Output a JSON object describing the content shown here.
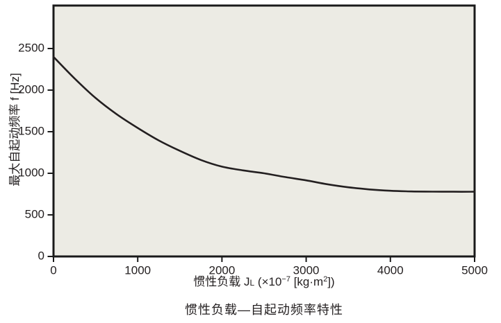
{
  "page": {
    "background_color": "#ffffff",
    "ink_color": "#231f20",
    "plot_background_color": "#ecebe4"
  },
  "chart_data": {
    "type": "line",
    "title": "惯性负载—自起动频率特性",
    "ylabel": "最大自起动频率 f [Hz]",
    "xlabel_plain": "惯性负载 JL (×10−7 [kg·m2])",
    "xlabel_segments": [
      {
        "t": "惯性负载 J",
        "s": "normal"
      },
      {
        "t": "L",
        "s": "small"
      },
      {
        "t": " (×10",
        "s": "normal"
      },
      {
        "t": "−7",
        "s": "sup"
      },
      {
        "t": " [kg·m",
        "s": "normal"
      },
      {
        "t": "2",
        "s": "sup"
      },
      {
        "t": "])",
        "s": "normal"
      }
    ],
    "xlim": [
      0,
      5000
    ],
    "ylim": [
      0,
      3000
    ],
    "x_ticks": [
      0,
      1000,
      2000,
      3000,
      4000,
      5000
    ],
    "y_ticks": [
      0,
      500,
      1000,
      1500,
      2000,
      2500
    ],
    "grid": false,
    "legend": "none",
    "line_color": "#231f20",
    "frame_color": "#1a1a1a",
    "series": [
      {
        "name": "最大自起动频率",
        "x": [
          0,
          250,
          500,
          750,
          1000,
          1250,
          1500,
          1750,
          2000,
          2250,
          2500,
          2750,
          3000,
          3250,
          3500,
          3750,
          4000,
          4250,
          4500,
          4750,
          5000
        ],
        "y": [
          2400,
          2140,
          1905,
          1710,
          1545,
          1395,
          1270,
          1160,
          1080,
          1035,
          1000,
          955,
          915,
          868,
          832,
          806,
          790,
          782,
          779,
          778,
          778
        ]
      }
    ]
  }
}
